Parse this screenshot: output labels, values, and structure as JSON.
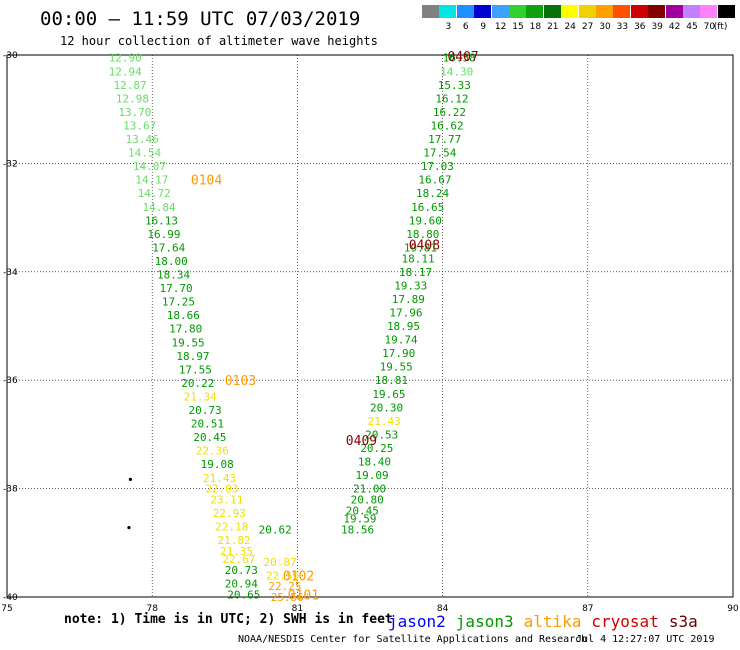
{
  "header": {
    "title": "00:00 – 11:59 UTC 07/03/2019",
    "subtitle": "12 hour collection of altimeter wave heights"
  },
  "color_scale": {
    "unit": "(ft)",
    "bins": [
      {
        "label": "",
        "color": "#808080"
      },
      {
        "label": "3",
        "color": "#00e5e5"
      },
      {
        "label": "6",
        "color": "#1e90ff"
      },
      {
        "label": "9",
        "color": "#0000d0"
      },
      {
        "label": "12",
        "color": "#40a0ff"
      },
      {
        "label": "15",
        "color": "#30d030"
      },
      {
        "label": "18",
        "color": "#10a010"
      },
      {
        "label": "21",
        "color": "#087008"
      },
      {
        "label": "24",
        "color": "#ffff00"
      },
      {
        "label": "27",
        "color": "#f0d000"
      },
      {
        "label": "30",
        "color": "#ffa000"
      },
      {
        "label": "33",
        "color": "#ff5000"
      },
      {
        "label": "36",
        "color": "#d00000"
      },
      {
        "label": "39",
        "color": "#800000"
      },
      {
        "label": "42",
        "color": "#a000a0"
      },
      {
        "label": "45",
        "color": "#c080ff"
      },
      {
        "label": "70",
        "color": "#ff80ff"
      },
      {
        "label": "",
        "color": "#000000"
      }
    ]
  },
  "footer": {
    "note": "note: 1) Time is in UTC; 2) SWH is in feet",
    "credit": "NOAA/NESDIS Center for Satellite Applications and Research",
    "generated": "Jul  4 12:27:07 UTC 2019"
  },
  "satellites": [
    {
      "name": "jason2",
      "color": "#0000ff"
    },
    {
      "name": "jason3",
      "color": "#009900"
    },
    {
      "name": "altika",
      "color": "#ff9900"
    },
    {
      "name": "cryosat",
      "color": "#cc0000"
    },
    {
      "name": "s3a",
      "color": "#660000"
    }
  ],
  "chart_data": {
    "type": "scatter",
    "xlim": [
      75,
      90
    ],
    "ylim": [
      -40,
      -30
    ],
    "x_ticks": [
      "75",
      "78",
      "81",
      "84",
      "87",
      "90"
    ],
    "y_ticks": [
      "-30",
      "-32",
      "-34",
      "-36",
      "-38",
      "-40"
    ],
    "grid": "dotted",
    "colors": {
      "light_green": "#66dd66",
      "green": "#009900",
      "yellow": "#f0e000",
      "orange": "#ff9900",
      "dark_red": "#880000"
    },
    "passes": [
      {
        "label": "0104",
        "label_color": "#ff9900",
        "label_at": [
          78.8,
          -32.3
        ]
      },
      {
        "label": "0103",
        "label_color": "#ff9900",
        "label_at": [
          79.5,
          -36.0
        ]
      },
      {
        "label": "0102",
        "label_color": "#ff9900",
        "label_at": [
          80.7,
          -39.6
        ]
      },
      {
        "label": "0101",
        "label_color": "#ff9900",
        "label_at": [
          80.8,
          -39.95
        ]
      },
      {
        "label": "0407",
        "label_color": "#880000",
        "label_at": [
          84.1,
          -30.02
        ]
      },
      {
        "label": "0408",
        "label_color": "#880000",
        "label_at": [
          83.3,
          -33.5
        ]
      },
      {
        "label": "0409",
        "label_color": "#880000",
        "label_at": [
          82.0,
          -37.1
        ]
      }
    ],
    "points": [
      {
        "lon": 77.1,
        "lat": -30.05,
        "label": "12.90",
        "color": "light_green"
      },
      {
        "lon": 77.1,
        "lat": -30.3,
        "label": "12.94",
        "color": "light_green"
      },
      {
        "lon": 77.2,
        "lat": -30.55,
        "label": "12.87",
        "color": "light_green"
      },
      {
        "lon": 77.25,
        "lat": -30.8,
        "label": "12.98",
        "color": "light_green"
      },
      {
        "lon": 77.3,
        "lat": -31.05,
        "label": "13.70",
        "color": "light_green"
      },
      {
        "lon": 77.4,
        "lat": -31.3,
        "label": "13.67",
        "color": "light_green"
      },
      {
        "lon": 77.45,
        "lat": -31.55,
        "label": "13.46",
        "color": "light_green"
      },
      {
        "lon": 77.5,
        "lat": -31.8,
        "label": "14.54",
        "color": "light_green"
      },
      {
        "lon": 77.6,
        "lat": -32.05,
        "label": "14.07",
        "color": "light_green"
      },
      {
        "lon": 77.65,
        "lat": -32.3,
        "label": "14.17",
        "color": "light_green"
      },
      {
        "lon": 77.7,
        "lat": -32.55,
        "label": "14.72",
        "color": "light_green"
      },
      {
        "lon": 77.8,
        "lat": -32.8,
        "label": "14.84",
        "color": "light_green"
      },
      {
        "lon": 77.85,
        "lat": -33.05,
        "label": "16.13",
        "color": "green"
      },
      {
        "lon": 77.9,
        "lat": -33.3,
        "label": "16.99",
        "color": "green"
      },
      {
        "lon": 78.0,
        "lat": -33.55,
        "label": "17.64",
        "color": "green"
      },
      {
        "lon": 78.05,
        "lat": -33.8,
        "label": "18.00",
        "color": "green"
      },
      {
        "lon": 78.1,
        "lat": -34.05,
        "label": "18.34",
        "color": "green"
      },
      {
        "lon": 78.15,
        "lat": -34.3,
        "label": "17.70",
        "color": "green"
      },
      {
        "lon": 78.2,
        "lat": -34.55,
        "label": "17.25",
        "color": "green"
      },
      {
        "lon": 78.3,
        "lat": -34.8,
        "label": "18.66",
        "color": "green"
      },
      {
        "lon": 78.35,
        "lat": -35.05,
        "label": "17.80",
        "color": "green"
      },
      {
        "lon": 78.4,
        "lat": -35.3,
        "label": "19.55",
        "color": "green"
      },
      {
        "lon": 78.5,
        "lat": -35.55,
        "label": "18.97",
        "color": "green"
      },
      {
        "lon": 78.55,
        "lat": -35.8,
        "label": "17.55",
        "color": "green"
      },
      {
        "lon": 78.6,
        "lat": -36.05,
        "label": "20.22",
        "color": "green"
      },
      {
        "lon": 78.65,
        "lat": -36.3,
        "label": "21.34",
        "color": "yellow"
      },
      {
        "lon": 78.75,
        "lat": -36.55,
        "label": "20.73",
        "color": "green"
      },
      {
        "lon": 78.8,
        "lat": -36.8,
        "label": "20.51",
        "color": "green"
      },
      {
        "lon": 78.85,
        "lat": -37.05,
        "label": "20.45",
        "color": "green"
      },
      {
        "lon": 78.9,
        "lat": -37.3,
        "label": "22.36",
        "color": "yellow"
      },
      {
        "lon": 79.0,
        "lat": -37.55,
        "label": "19.08",
        "color": "green"
      },
      {
        "lon": 79.05,
        "lat": -37.8,
        "label": "21.43",
        "color": "yellow"
      },
      {
        "lon": 79.1,
        "lat": -38.0,
        "label": "22.03",
        "color": "yellow"
      },
      {
        "lon": 79.2,
        "lat": -38.2,
        "label": "23.11",
        "color": "yellow"
      },
      {
        "lon": 79.25,
        "lat": -38.45,
        "label": "22.93",
        "color": "yellow"
      },
      {
        "lon": 79.3,
        "lat": -38.7,
        "label": "22.18",
        "color": "yellow"
      },
      {
        "lon": 79.35,
        "lat": -38.95,
        "label": "21.82",
        "color": "yellow"
      },
      {
        "lon": 79.4,
        "lat": -39.15,
        "label": "21.35",
        "color": "yellow"
      },
      {
        "lon": 79.45,
        "lat": -39.3,
        "label": "22.67",
        "color": "yellow"
      },
      {
        "lon": 79.5,
        "lat": -39.5,
        "label": "20.73",
        "color": "green"
      },
      {
        "lon": 79.5,
        "lat": -39.75,
        "label": "20.94",
        "color": "green"
      },
      {
        "lon": 79.55,
        "lat": -39.95,
        "label": "20.65",
        "color": "green"
      },
      {
        "lon": 80.2,
        "lat": -38.75,
        "label": "20.62",
        "color": "green"
      },
      {
        "lon": 80.3,
        "lat": -39.35,
        "label": "20.87",
        "color": "yellow"
      },
      {
        "lon": 80.35,
        "lat": -39.6,
        "label": "22.59",
        "color": "yellow"
      },
      {
        "lon": 80.4,
        "lat": -39.8,
        "label": "22.25",
        "color": "orange"
      },
      {
        "lon": 80.45,
        "lat": -40.0,
        "label": "25.56",
        "color": "orange"
      },
      {
        "lon": 84.0,
        "lat": -30.05,
        "label": "16.58",
        "color": "green"
      },
      {
        "lon": 83.95,
        "lat": -30.3,
        "label": "14.30",
        "color": "light_green"
      },
      {
        "lon": 83.9,
        "lat": -30.55,
        "label": "15.33",
        "color": "green"
      },
      {
        "lon": 83.85,
        "lat": -30.8,
        "label": "16.12",
        "color": "green"
      },
      {
        "lon": 83.8,
        "lat": -31.05,
        "label": "16.22",
        "color": "green"
      },
      {
        "lon": 83.75,
        "lat": -31.3,
        "label": "16.62",
        "color": "green"
      },
      {
        "lon": 83.7,
        "lat": -31.55,
        "label": "17.77",
        "color": "green"
      },
      {
        "lon": 83.6,
        "lat": -31.8,
        "label": "17.54",
        "color": "green"
      },
      {
        "lon": 83.55,
        "lat": -32.05,
        "label": "17.03",
        "color": "green"
      },
      {
        "lon": 83.5,
        "lat": -32.3,
        "label": "16.67",
        "color": "green"
      },
      {
        "lon": 83.45,
        "lat": -32.55,
        "label": "18.24",
        "color": "green"
      },
      {
        "lon": 83.35,
        "lat": -32.8,
        "label": "16.65",
        "color": "green"
      },
      {
        "lon": 83.3,
        "lat": -33.05,
        "label": "19.60",
        "color": "green"
      },
      {
        "lon": 83.25,
        "lat": -33.3,
        "label": "18.80",
        "color": "green"
      },
      {
        "lon": 83.2,
        "lat": -33.55,
        "label": "19.81",
        "color": "green"
      },
      {
        "lon": 83.15,
        "lat": -33.75,
        "label": "18.11",
        "color": "green"
      },
      {
        "lon": 83.1,
        "lat": -34.0,
        "label": "18.17",
        "color": "green"
      },
      {
        "lon": 83.0,
        "lat": -34.25,
        "label": "19.33",
        "color": "green"
      },
      {
        "lon": 82.95,
        "lat": -34.5,
        "label": "17.89",
        "color": "green"
      },
      {
        "lon": 82.9,
        "lat": -34.75,
        "label": "17.96",
        "color": "green"
      },
      {
        "lon": 82.85,
        "lat": -35.0,
        "label": "18.95",
        "color": "green"
      },
      {
        "lon": 82.8,
        "lat": -35.25,
        "label": "19.74",
        "color": "green"
      },
      {
        "lon": 82.75,
        "lat": -35.5,
        "label": "17.90",
        "color": "green"
      },
      {
        "lon": 82.7,
        "lat": -35.75,
        "label": "19.55",
        "color": "green"
      },
      {
        "lon": 82.6,
        "lat": -36.0,
        "label": "18.81",
        "color": "green"
      },
      {
        "lon": 82.55,
        "lat": -36.25,
        "label": "19.65",
        "color": "green"
      },
      {
        "lon": 82.5,
        "lat": -36.5,
        "label": "20.30",
        "color": "green"
      },
      {
        "lon": 82.45,
        "lat": -36.75,
        "label": "21.43",
        "color": "yellow"
      },
      {
        "lon": 82.4,
        "lat": -37.0,
        "label": "20.53",
        "color": "green"
      },
      {
        "lon": 82.3,
        "lat": -37.25,
        "label": "20.25",
        "color": "green"
      },
      {
        "lon": 82.25,
        "lat": -37.5,
        "label": "18.40",
        "color": "green"
      },
      {
        "lon": 82.2,
        "lat": -37.75,
        "label": "19.09",
        "color": "green"
      },
      {
        "lon": 82.15,
        "lat": -38.0,
        "label": "21.00",
        "color": "green"
      },
      {
        "lon": 82.1,
        "lat": -38.2,
        "label": "20.80",
        "color": "green"
      },
      {
        "lon": 82.0,
        "lat": -38.4,
        "label": "20.45",
        "color": "green"
      },
      {
        "lon": 81.95,
        "lat": -38.55,
        "label": "19.59",
        "color": "green"
      },
      {
        "lon": 81.9,
        "lat": -38.75,
        "label": "18.56",
        "color": "green"
      }
    ],
    "islands": [
      {
        "lon": 77.55,
        "lat": -37.83
      },
      {
        "lon": 77.52,
        "lat": -38.72
      }
    ]
  }
}
